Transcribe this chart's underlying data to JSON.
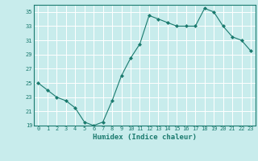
{
  "x": [
    0,
    1,
    2,
    3,
    4,
    5,
    6,
    7,
    8,
    9,
    10,
    11,
    12,
    13,
    14,
    15,
    16,
    17,
    18,
    19,
    20,
    21,
    22,
    23
  ],
  "y": [
    25,
    24,
    23,
    22.5,
    21.5,
    19.5,
    19,
    19.5,
    22.5,
    26,
    28.5,
    30.5,
    34.5,
    34,
    33.5,
    33,
    33,
    33,
    35.5,
    35,
    33,
    31.5,
    31,
    29.5
  ],
  "line_color": "#1a7a6e",
  "marker_color": "#1a7a6e",
  "bg_color": "#c8ecec",
  "grid_color": "#ffffff",
  "xlabel": "Humidex (Indice chaleur)",
  "xlabel_color": "#1a7a6e",
  "tick_color": "#1a7a6e",
  "ylim": [
    19,
    36
  ],
  "yticks": [
    19,
    21,
    23,
    25,
    27,
    29,
    31,
    33,
    35
  ],
  "xlim": [
    -0.5,
    23.5
  ]
}
